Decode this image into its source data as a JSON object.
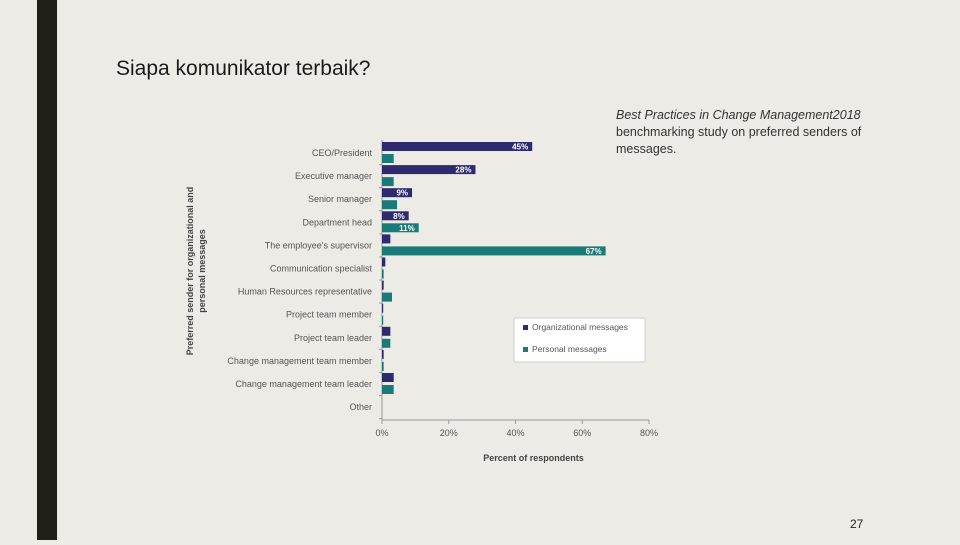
{
  "slide": {
    "title": "Siapa komunikator terbaik?",
    "caption_italic": "Best Practices in Change Management2018",
    "caption_rest": " benchmarking study on preferred senders of messages.",
    "page_number": "27"
  },
  "colors": {
    "organizational": "#2e2a6e",
    "personal": "#1a7a78",
    "side_bar": "#1f1f17",
    "background": "#edebe5"
  },
  "chart_data": {
    "type": "bar",
    "orientation": "horizontal",
    "categories": [
      "CEO/President",
      "Executive manager",
      "Senior manager",
      "Department head",
      "The employee's supervisor",
      "Communication specialist",
      "Human Resources representative",
      "Project team member",
      "Project team leader",
      "Change management team member",
      "Change management team leader",
      "Other"
    ],
    "series": [
      {
        "name": "Organizational messages",
        "values": [
          45,
          28,
          9,
          8,
          2.5,
          1,
          0.5,
          0.3,
          2.5,
          0.5,
          3.5,
          0
        ],
        "labels": [
          "45%",
          "28%",
          "9%",
          "8%",
          "",
          "",
          "",
          "",
          "",
          "",
          "",
          ""
        ]
      },
      {
        "name": "Personal messages",
        "values": [
          3.5,
          3.5,
          4.5,
          11,
          67,
          0.5,
          3,
          0.3,
          2.5,
          0.5,
          3.5,
          0
        ],
        "labels": [
          "",
          "",
          "",
          "11%",
          "67%",
          "",
          "",
          "",
          "",
          "",
          "",
          ""
        ]
      }
    ],
    "xlim": [
      0,
      80
    ],
    "xticks": [
      "0%",
      "20%",
      "40%",
      "60%",
      "80%"
    ],
    "xlabel": "Percent of respondents",
    "ylabel_line1": "Preferred sender for organizational and",
    "ylabel_line2": "personal messages",
    "legend": {
      "position": "right",
      "items": [
        "Organizational messages",
        "Personal messages"
      ]
    },
    "grid": false
  }
}
